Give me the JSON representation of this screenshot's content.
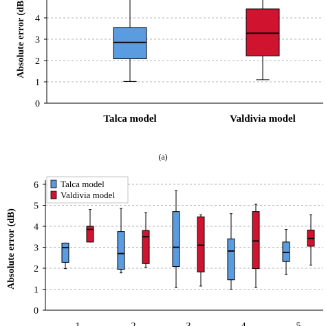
{
  "colors": {
    "talca": "#5b9bdf",
    "valdivia": "#d0142f"
  },
  "caption_a": "(a)",
  "chart_data": [
    {
      "type": "boxplot",
      "ylabel": "Absolute error (dB)",
      "ylim": [
        0,
        5
      ],
      "yticks": [
        "0",
        "1",
        "2",
        "3",
        "4",
        "5"
      ],
      "grid": true,
      "categories": [
        "Talca model",
        "Valdivia model"
      ],
      "boxes": [
        {
          "name": "Talca model",
          "min": 1.02,
          "q1": 2.08,
          "median": 2.85,
          "q3": 3.55,
          "max": 5.0
        },
        {
          "name": "Valdivia model",
          "min": 1.1,
          "q1": 2.22,
          "median": 3.28,
          "q3": 4.42,
          "max": 5.0
        }
      ]
    },
    {
      "type": "boxplot",
      "ylabel": "Absolute error (dB)",
      "ylim": [
        0,
        6
      ],
      "yticks": [
        "0",
        "1",
        "2",
        "3",
        "4",
        "5",
        "6"
      ],
      "grid": true,
      "legend": {
        "position": "top-left",
        "entries": [
          "Talca model",
          "Valdivia model"
        ]
      },
      "categories": [
        "1",
        "2",
        "3",
        "4",
        "5"
      ],
      "series": [
        {
          "name": "Talca model",
          "values": [
            {
              "min": 1.98,
              "q1": 2.28,
              "median": 2.98,
              "q3": 3.2,
              "max": 3.2
            },
            {
              "min": 1.78,
              "q1": 1.95,
              "median": 2.7,
              "q3": 3.75,
              "max": 4.85
            },
            {
              "min": 1.08,
              "q1": 2.08,
              "median": 3.0,
              "q3": 4.7,
              "max": 5.7
            },
            {
              "min": 1.0,
              "q1": 1.45,
              "median": 2.82,
              "q3": 3.4,
              "max": 4.6
            },
            {
              "min": 1.7,
              "q1": 2.32,
              "median": 2.75,
              "q3": 3.25,
              "max": 3.85
            }
          ]
        },
        {
          "name": "Valdivia model",
          "values": [
            {
              "min": 3.25,
              "q1": 3.25,
              "median": 3.85,
              "q3": 4.0,
              "max": 4.8
            },
            {
              "min": 2.05,
              "q1": 2.22,
              "median": 3.5,
              "q3": 3.8,
              "max": 4.65
            },
            {
              "min": 1.15,
              "q1": 1.82,
              "median": 3.1,
              "q3": 4.45,
              "max": 4.55
            },
            {
              "min": 1.08,
              "q1": 1.98,
              "median": 3.3,
              "q3": 4.7,
              "max": 5.05
            },
            {
              "min": 2.15,
              "q1": 3.05,
              "median": 3.42,
              "q3": 3.82,
              "max": 4.55
            }
          ]
        }
      ]
    }
  ]
}
